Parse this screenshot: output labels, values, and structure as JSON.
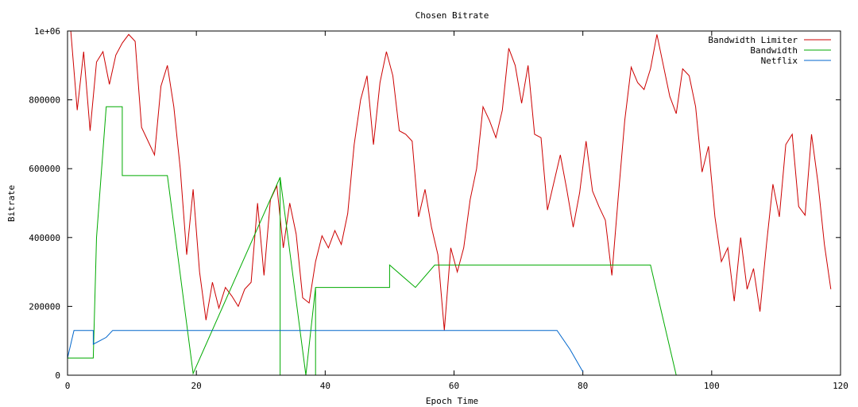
{
  "chart_data": {
    "type": "line",
    "title": "Chosen Bitrate",
    "xlabel": "Epoch Time",
    "ylabel": "Bitrate",
    "xlim": [
      0,
      120
    ],
    "ylim": [
      0,
      1000000
    ],
    "x_ticks": [
      0,
      20,
      40,
      60,
      80,
      100,
      120
    ],
    "x_tick_labels": [
      "0",
      "20",
      "40",
      "60",
      "80",
      "100",
      "120"
    ],
    "y_ticks": [
      0,
      200000,
      400000,
      600000,
      800000,
      1000000
    ],
    "y_tick_labels": [
      "0",
      "200000",
      "400000",
      "600000",
      "800000",
      "1e+06"
    ],
    "legend_position": "top-right",
    "series": [
      {
        "name": "Bandwidth Limiter",
        "color": "#cc0000",
        "points": [
          [
            0.5,
            1000000
          ],
          [
            1.5,
            770000
          ],
          [
            2.5,
            940000
          ],
          [
            3.5,
            710000
          ],
          [
            4.5,
            910000
          ],
          [
            5.5,
            940000
          ],
          [
            6.5,
            845000
          ],
          [
            7.5,
            930000
          ],
          [
            8.5,
            965000
          ],
          [
            9.5,
            990000
          ],
          [
            10.5,
            970000
          ],
          [
            11.5,
            720000
          ],
          [
            12.5,
            680000
          ],
          [
            13.5,
            640000
          ],
          [
            14.5,
            840000
          ],
          [
            15.5,
            900000
          ],
          [
            16.5,
            780000
          ],
          [
            17.5,
            600000
          ],
          [
            18.5,
            350000
          ],
          [
            19.5,
            540000
          ],
          [
            20.5,
            300000
          ],
          [
            21.5,
            160000
          ],
          [
            22.5,
            270000
          ],
          [
            23.5,
            195000
          ],
          [
            24.5,
            255000
          ],
          [
            25.5,
            230000
          ],
          [
            26.5,
            200000
          ],
          [
            27.5,
            250000
          ],
          [
            28.5,
            270000
          ],
          [
            29.5,
            500000
          ],
          [
            30.5,
            290000
          ],
          [
            31.5,
            510000
          ],
          [
            32.5,
            550000
          ],
          [
            33.5,
            370000
          ],
          [
            34.5,
            500000
          ],
          [
            35.5,
            410000
          ],
          [
            36.5,
            225000
          ],
          [
            37.5,
            210000
          ],
          [
            38.5,
            330000
          ],
          [
            39.5,
            405000
          ],
          [
            40.5,
            370000
          ],
          [
            41.5,
            420000
          ],
          [
            42.5,
            380000
          ],
          [
            43.5,
            470000
          ],
          [
            44.5,
            670000
          ],
          [
            45.5,
            800000
          ],
          [
            46.5,
            870000
          ],
          [
            47.5,
            670000
          ],
          [
            48.5,
            850000
          ],
          [
            49.5,
            940000
          ],
          [
            50.5,
            870000
          ],
          [
            51.5,
            710000
          ],
          [
            52.5,
            700000
          ],
          [
            53.5,
            680000
          ],
          [
            54.5,
            460000
          ],
          [
            55.5,
            540000
          ],
          [
            56.5,
            430000
          ],
          [
            57.5,
            350000
          ],
          [
            58.5,
            130000
          ],
          [
            59.5,
            370000
          ],
          [
            60.5,
            300000
          ],
          [
            61.5,
            370000
          ],
          [
            62.5,
            510000
          ],
          [
            63.5,
            600000
          ],
          [
            64.5,
            780000
          ],
          [
            65.5,
            740000
          ],
          [
            66.5,
            690000
          ],
          [
            67.5,
            770000
          ],
          [
            68.5,
            950000
          ],
          [
            69.5,
            900000
          ],
          [
            70.5,
            790000
          ],
          [
            71.5,
            900000
          ],
          [
            72.5,
            700000
          ],
          [
            73.5,
            690000
          ],
          [
            74.5,
            480000
          ],
          [
            75.5,
            560000
          ],
          [
            76.5,
            640000
          ],
          [
            77.5,
            540000
          ],
          [
            78.5,
            430000
          ],
          [
            79.5,
            530000
          ],
          [
            80.5,
            680000
          ],
          [
            81.5,
            535000
          ],
          [
            82.5,
            490000
          ],
          [
            83.5,
            450000
          ],
          [
            84.5,
            290000
          ],
          [
            85.5,
            520000
          ],
          [
            86.5,
            740000
          ],
          [
            87.5,
            895000
          ],
          [
            88.5,
            850000
          ],
          [
            89.5,
            830000
          ],
          [
            90.5,
            890000
          ],
          [
            91.5,
            990000
          ],
          [
            92.5,
            900000
          ],
          [
            93.5,
            810000
          ],
          [
            94.5,
            760000
          ],
          [
            95.5,
            890000
          ],
          [
            96.5,
            870000
          ],
          [
            97.5,
            780000
          ],
          [
            98.5,
            590000
          ],
          [
            99.5,
            665000
          ],
          [
            100.5,
            460000
          ],
          [
            101.5,
            330000
          ],
          [
            102.5,
            370000
          ],
          [
            103.5,
            215000
          ],
          [
            104.5,
            400000
          ],
          [
            105.5,
            250000
          ],
          [
            106.5,
            310000
          ],
          [
            107.5,
            185000
          ],
          [
            108.5,
            380000
          ],
          [
            109.5,
            555000
          ],
          [
            110.5,
            460000
          ],
          [
            111.5,
            670000
          ],
          [
            112.5,
            700000
          ],
          [
            113.5,
            490000
          ],
          [
            114.5,
            465000
          ],
          [
            115.5,
            700000
          ],
          [
            116.5,
            560000
          ],
          [
            117.5,
            380000
          ],
          [
            118.5,
            250000
          ]
        ]
      },
      {
        "name": "Bandwidth",
        "color": "#00aa00",
        "points": [
          [
            0,
            50000
          ],
          [
            4,
            50000
          ],
          [
            4.5,
            400000
          ],
          [
            6,
            780000
          ],
          [
            8.5,
            780000
          ],
          [
            8.5,
            580000
          ],
          [
            15.5,
            580000
          ],
          [
            19.5,
            5000
          ],
          [
            33,
            575000
          ],
          [
            33,
            0
          ],
          [
            33,
            575000
          ],
          [
            37,
            0
          ],
          [
            38.5,
            255000
          ],
          [
            38.5,
            0
          ],
          [
            38.5,
            255000
          ],
          [
            50,
            255000
          ],
          [
            50,
            320000
          ],
          [
            54,
            255000
          ],
          [
            57,
            320000
          ],
          [
            90.5,
            320000
          ],
          [
            94.5,
            0
          ]
        ]
      },
      {
        "name": "Netflix",
        "color": "#0066cc",
        "points": [
          [
            0,
            50000
          ],
          [
            1,
            130000
          ],
          [
            4,
            130000
          ],
          [
            4,
            90000
          ],
          [
            6,
            110000
          ],
          [
            7,
            130000
          ],
          [
            76,
            130000
          ],
          [
            78,
            75000
          ],
          [
            80,
            10000
          ]
        ]
      }
    ]
  }
}
